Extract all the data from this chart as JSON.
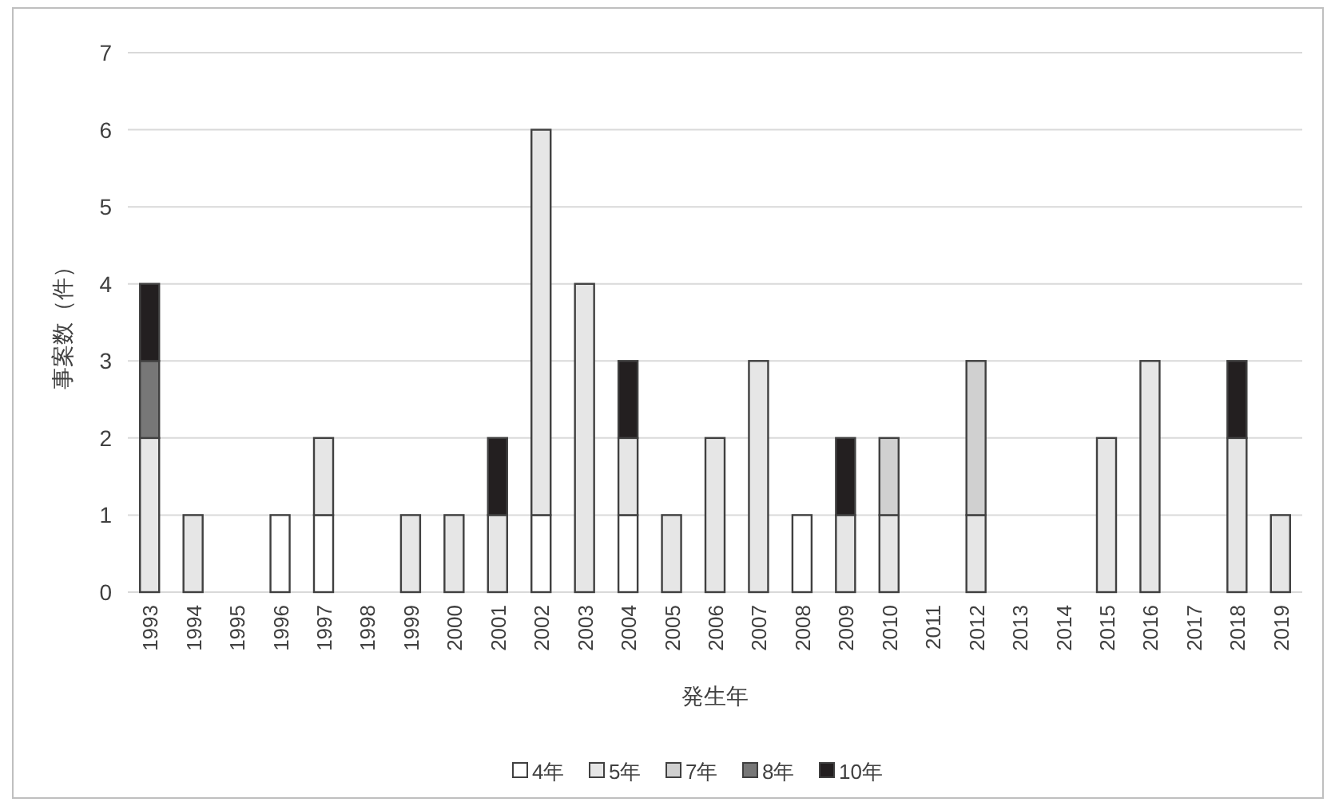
{
  "chart_data": {
    "type": "bar",
    "stacked": true,
    "xlabel": "発生年",
    "ylabel": "事案数（件）",
    "categories": [
      "1993",
      "1994",
      "1995",
      "1996",
      "1997",
      "1998",
      "1999",
      "2000",
      "2001",
      "2002",
      "2003",
      "2004",
      "2005",
      "2006",
      "2007",
      "2008",
      "2009",
      "2010",
      "2011",
      "2012",
      "2013",
      "2014",
      "2015",
      "2016",
      "2017",
      "2018",
      "2019"
    ],
    "series": [
      {
        "name": "4年",
        "color": "#ffffff",
        "values": [
          null,
          null,
          null,
          1,
          1,
          null,
          null,
          null,
          null,
          1,
          null,
          1,
          null,
          null,
          null,
          1,
          null,
          null,
          null,
          null,
          null,
          null,
          null,
          null,
          null,
          null,
          null
        ]
      },
      {
        "name": "5年",
        "color": "#e6e6e6",
        "values": [
          2,
          1,
          null,
          null,
          1,
          null,
          1,
          1,
          1,
          5,
          4,
          1,
          1,
          2,
          3,
          null,
          1,
          1,
          null,
          1,
          null,
          null,
          2,
          3,
          null,
          2,
          1
        ]
      },
      {
        "name": "7年",
        "color": "#d0d0d0",
        "values": [
          null,
          null,
          null,
          null,
          null,
          null,
          null,
          null,
          null,
          null,
          null,
          null,
          null,
          null,
          null,
          null,
          null,
          1,
          null,
          2,
          null,
          null,
          null,
          null,
          null,
          null,
          null
        ]
      },
      {
        "name": "8年",
        "color": "#777777",
        "values": [
          1,
          null,
          null,
          null,
          null,
          null,
          null,
          null,
          null,
          null,
          null,
          null,
          null,
          null,
          null,
          null,
          null,
          null,
          null,
          null,
          null,
          null,
          null,
          null,
          null,
          null,
          null
        ]
      },
      {
        "name": "10年",
        "color": "#231f20",
        "values": [
          1,
          null,
          null,
          null,
          null,
          null,
          null,
          null,
          1,
          null,
          null,
          1,
          null,
          null,
          null,
          null,
          1,
          null,
          null,
          null,
          null,
          null,
          null,
          null,
          null,
          1,
          null
        ]
      }
    ],
    "ylim": [
      0,
      7
    ],
    "yticks": [
      0,
      1,
      2,
      3,
      4,
      5,
      6,
      7
    ],
    "grid": "y",
    "legend": "bottom"
  }
}
